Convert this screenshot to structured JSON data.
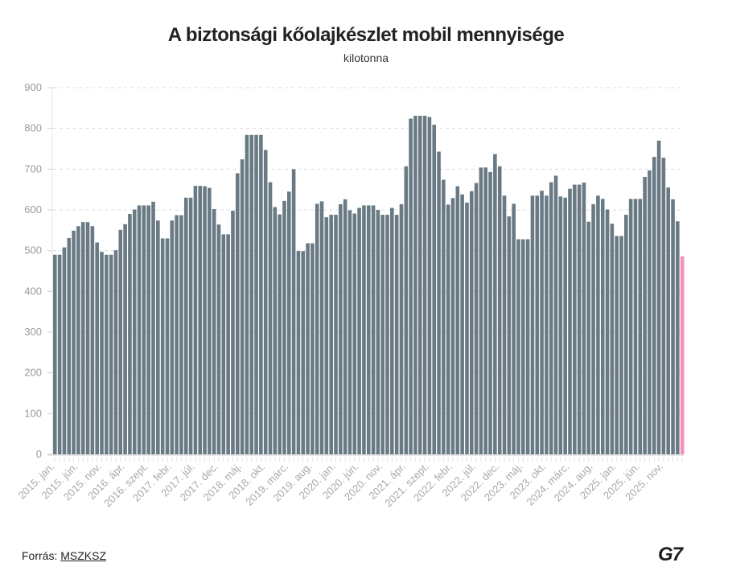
{
  "chart_data": {
    "type": "bar",
    "title": "A biztonsági kőolajkészlet mobil mennyisége",
    "subtitle": "kilotonna",
    "ylim": [
      0,
      900
    ],
    "yticks": [
      0,
      100,
      200,
      300,
      400,
      500,
      600,
      700,
      800,
      900
    ],
    "grid": true,
    "bar_color": "#697a84",
    "highlight_color": "#f38fba",
    "highlight_last": true,
    "categories": [
      "2015. jan.",
      "2015. febr.",
      "2015. márc.",
      "2015. ápr.",
      "2015. máj.",
      "2015. jún.",
      "2015. júl.",
      "2015. aug.",
      "2015. szept.",
      "2015. okt.",
      "2015. nov.",
      "2015. dec.",
      "2016. jan.",
      "2016. febr.",
      "2016. márc.",
      "2016. ápr.",
      "2016. máj.",
      "2016. jún.",
      "2016. júl.",
      "2016. aug.",
      "2016. szept.",
      "2016. okt.",
      "2016. nov.",
      "2016. dec.",
      "2017. jan.",
      "2017. febr.",
      "2017. márc.",
      "2017. ápr.",
      "2017. máj.",
      "2017. jún.",
      "2017. júl.",
      "2017. aug.",
      "2017. szept.",
      "2017. okt.",
      "2017. nov.",
      "2017. dec.",
      "2018. jan.",
      "2018. febr.",
      "2018. márc.",
      "2018. ápr.",
      "2018. máj.",
      "2018. jún.",
      "2018. júl.",
      "2018. aug.",
      "2018. szept.",
      "2018. okt.",
      "2018. nov.",
      "2018. dec.",
      "2019. jan.",
      "2019. febr.",
      "2019. márc.",
      "2019. ápr.",
      "2019. máj.",
      "2019. jún.",
      "2019. júl.",
      "2019. aug.",
      "2019. szept.",
      "2019. okt.",
      "2019. nov.",
      "2019. dec.",
      "2020. jan.",
      "2020. febr.",
      "2020. márc.",
      "2020. ápr.",
      "2020. máj.",
      "2020. jún.",
      "2020. júl.",
      "2020. aug.",
      "2020. szept.",
      "2020. okt.",
      "2020. nov.",
      "2020. dec.",
      "2021. jan.",
      "2021. febr.",
      "2021. márc.",
      "2021. ápr.",
      "2021. máj.",
      "2021. jún.",
      "2021. júl.",
      "2021. aug.",
      "2021. szept.",
      "2021. okt.",
      "2021. nov.",
      "2021. dec.",
      "2022. jan.",
      "2022. febr.",
      "2022. márc.",
      "2022. ápr.",
      "2022. máj.",
      "2022. jún.",
      "2022. júl.",
      "2022. aug.",
      "2022. szept.",
      "2022. okt.",
      "2022. nov.",
      "2022. dec.",
      "2023. jan.",
      "2023. febr.",
      "2023. márc.",
      "2023. ápr.",
      "2023. máj.",
      "2023. jún.",
      "2023. júl.",
      "2023. aug.",
      "2023. szept.",
      "2023. okt.",
      "2023. nov.",
      "2023. dec.",
      "2024. jan.",
      "2024. febr.",
      "2024. márc.",
      "2024. ápr.",
      "2024. máj.",
      "2024. jún.",
      "2024. júl.",
      "2024. aug.",
      "2024. szept.",
      "2024. okt.",
      "2024. nov.",
      "2024. dec.",
      "2025. jan.",
      "2025. febr.",
      "2025. márc.",
      "2025. ápr.",
      "2025. máj.",
      "2025. jún.",
      "2025. júl.",
      "2025. aug.",
      "2025. szept.",
      "2025. okt.",
      "2025. nov.",
      "2025. dec.",
      "2026. jan.",
      "2026. febr.",
      "2026. márc."
    ],
    "xtick_every": 5,
    "values": [
      490,
      490,
      508,
      531,
      549,
      560,
      570,
      570,
      560,
      520,
      497,
      490,
      490,
      501,
      551,
      565,
      590,
      601,
      611,
      611,
      611,
      620,
      574,
      530,
      530,
      574,
      587,
      587,
      630,
      630,
      659,
      659,
      658,
      654,
      602,
      564,
      540,
      540,
      598,
      690,
      724,
      784,
      784,
      784,
      784,
      747,
      668,
      607,
      589,
      622,
      645,
      700,
      499,
      499,
      518,
      518,
      615,
      621,
      582,
      588,
      588,
      614,
      626,
      599,
      591,
      605,
      611,
      611,
      611,
      600,
      588,
      588,
      605,
      588,
      614,
      707,
      824,
      831,
      831,
      831,
      828,
      809,
      743,
      674,
      613,
      629,
      658,
      638,
      618,
      646,
      666,
      704,
      704,
      693,
      737,
      707,
      635,
      584,
      615,
      528,
      528,
      528,
      635,
      635,
      647,
      635,
      668,
      684,
      633,
      630,
      652,
      662,
      662,
      667,
      571,
      614,
      635,
      627,
      601,
      566,
      536,
      536,
      588,
      627,
      627,
      627,
      681,
      697,
      730,
      770,
      728,
      655,
      626,
      572,
      486
    ]
  },
  "footer": {
    "source_label": "Forrás: ",
    "source_link": "MSZKSZ"
  },
  "logo": {
    "text": "G7"
  }
}
